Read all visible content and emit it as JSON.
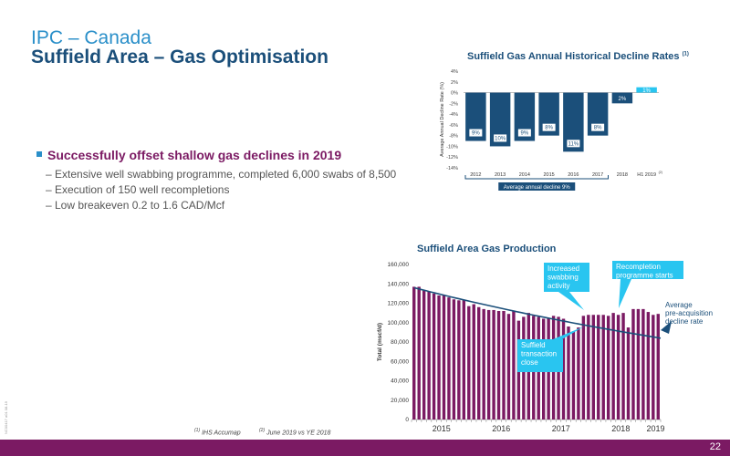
{
  "header": {
    "title": "IPC – Canada",
    "subtitle": "Suffield Area – Gas Optimisation"
  },
  "bullets": {
    "main": "Successfully offset shallow gas declines in 2019",
    "items": [
      "– Extensive well swabbing programme, completed 6,000 swabs of 8,500",
      "– Execution of 150 well recompletions",
      "– Low breakeven 0.2 to 1.6 CAD/Mcf"
    ]
  },
  "footnotes": {
    "f1": "IHS Accumap",
    "f1_mark": "(1)",
    "f2": "June 2019 vs YE 2018",
    "f2_mark": "(2)"
  },
  "side_code": "NC00417 a01 08-19",
  "page_number": "22",
  "colors": {
    "navy": "#1b4f7a",
    "teal": "#2a8fc9",
    "cyan": "#29c5f0",
    "plum": "#7b1a63",
    "footer": "#7b1a63"
  },
  "chart_data": [
    {
      "type": "bar",
      "title": "Suffield Gas Annual Historical Decline Rates",
      "title_sup": "(1)",
      "ylabel": "Average Annual Decline Rate (%)",
      "ylim": [
        -14,
        4
      ],
      "yticks": [
        4,
        2,
        0,
        -2,
        -4,
        -6,
        -8,
        -10,
        -12,
        -14
      ],
      "categories": [
        "2012",
        "2013",
        "2014",
        "2015",
        "2016",
        "2017",
        "2018",
        "H1 2019"
      ],
      "category_sup": [
        "",
        "",
        "",
        "",
        "",
        "",
        "",
        "(2)"
      ],
      "values": [
        -9,
        -10,
        -9,
        -8,
        -11,
        -8,
        -2,
        1
      ],
      "labels": [
        "9%",
        "10%",
        "9%",
        "8%",
        "11%",
        "8%",
        "2%",
        "1%"
      ],
      "colors": [
        "#1b4f7a",
        "#1b4f7a",
        "#1b4f7a",
        "#1b4f7a",
        "#1b4f7a",
        "#1b4f7a",
        "#1b4f7a",
        "#29c5f0"
      ],
      "annotation": "Average annual decline 9%"
    },
    {
      "type": "bar",
      "title": "Suffield Area Gas Production",
      "ylabel": "Total (mscf/d)",
      "ylim": [
        0,
        160000
      ],
      "yticks": [
        "0",
        "20,000",
        "40,000",
        "60,000",
        "80,000",
        "100,000",
        "120,000",
        "140,000",
        "160,000"
      ],
      "xticks": [
        "2015",
        "2016",
        "2017",
        "2018",
        "2019"
      ],
      "values": [
        137000,
        137000,
        133000,
        132000,
        130000,
        128000,
        128000,
        126000,
        124000,
        123000,
        123000,
        117000,
        119000,
        116000,
        114000,
        113000,
        113000,
        112000,
        112000,
        109000,
        112000,
        102000,
        106000,
        110000,
        107000,
        106000,
        104000,
        105000,
        107000,
        106000,
        104000,
        96000,
        91000,
        95000,
        107000,
        108000,
        108000,
        108000,
        108000,
        107000,
        110000,
        108000,
        110000,
        95000,
        114000,
        114000,
        114000,
        111000,
        108000,
        109000
      ],
      "decline_curve": [
        136000,
        84000
      ],
      "series_color": "#7b1a63",
      "curve_color": "#1b4f7a",
      "callouts": [
        {
          "text": [
            "Increased",
            "swabbing",
            "activity"
          ]
        },
        {
          "text": [
            "Recompletion",
            "programme starts"
          ]
        },
        {
          "text": [
            "Suffield",
            "transaction",
            "close"
          ]
        }
      ],
      "side_label": [
        "Average",
        "pre-acquisition",
        "decline rate"
      ]
    }
  ]
}
